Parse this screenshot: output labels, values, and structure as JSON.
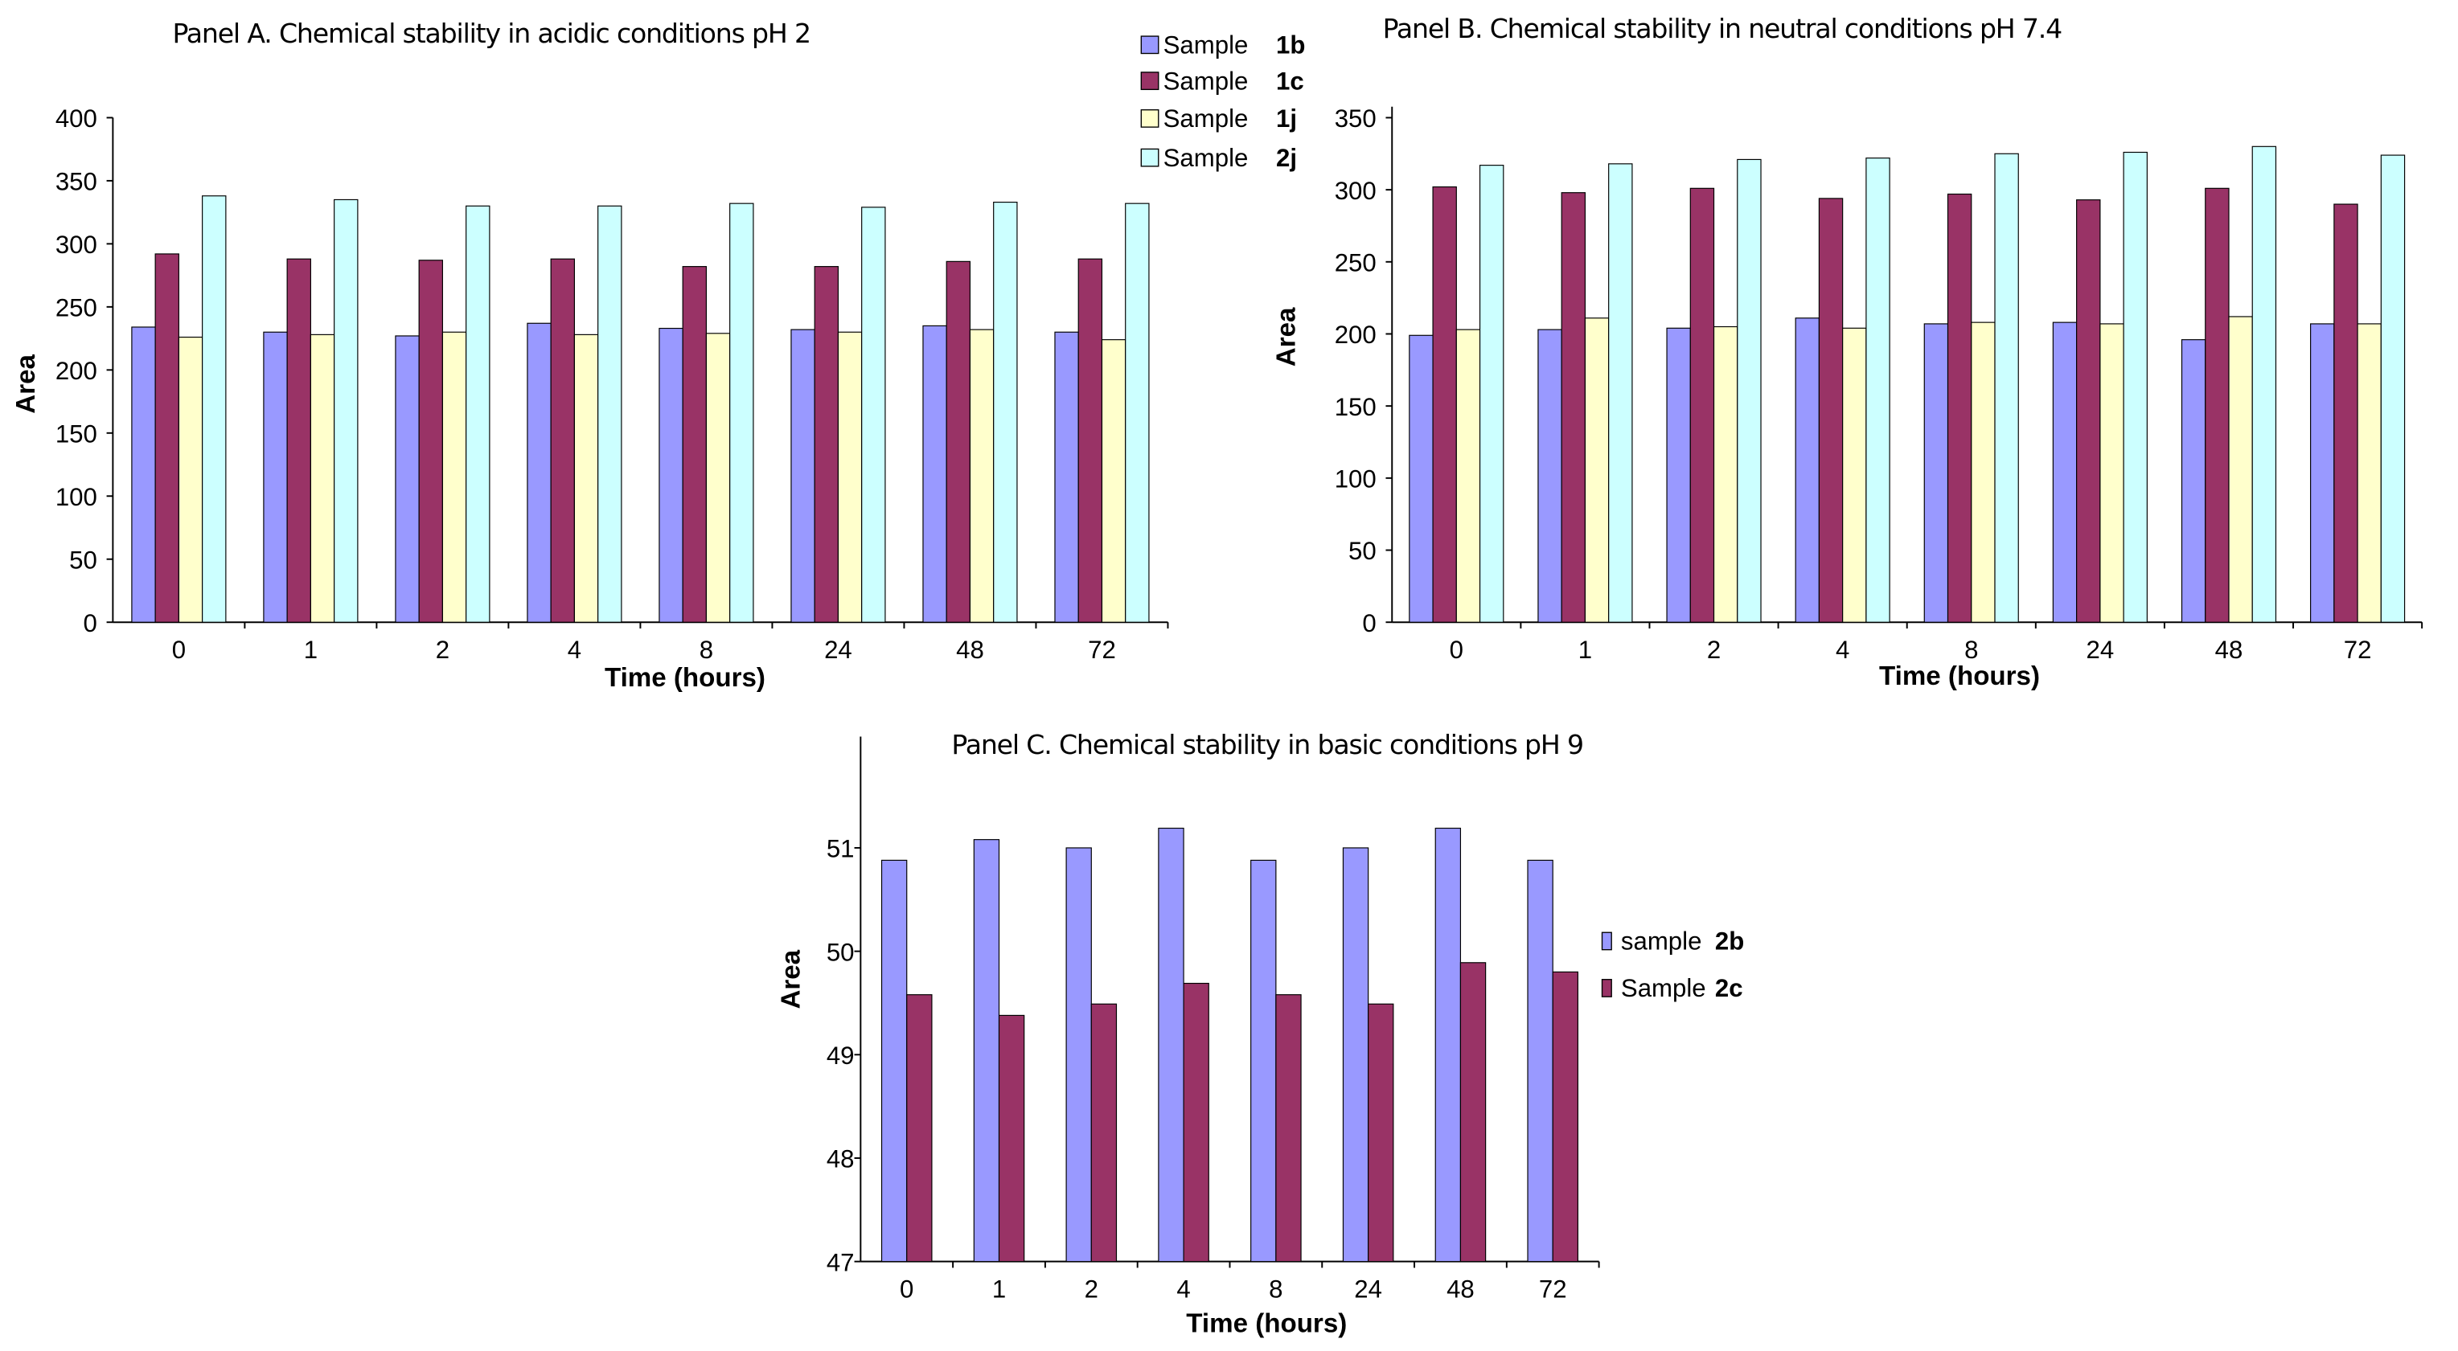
{
  "chart_data": [
    {
      "type": "bar",
      "title": "Panel A.   Chemical stability  in acidic conditions  pH 2",
      "xlabel": "Time (hours)",
      "ylabel": "Area",
      "ylim": [
        0,
        400
      ],
      "yticks": [
        "0",
        "50",
        "100",
        "150",
        "200",
        "250",
        "300",
        "350",
        "400"
      ],
      "categories": [
        "0",
        "1",
        "2",
        "4",
        "8",
        "24",
        "48",
        "72"
      ],
      "legend_position": "top-right",
      "series": [
        {
          "name": "Sample",
          "id": "1b",
          "color": "#9999ff",
          "values": [
            234,
            230,
            227,
            237,
            233,
            232,
            235,
            230
          ]
        },
        {
          "name": "Sample",
          "id": "1c",
          "color": "#993366",
          "values": [
            292,
            288,
            287,
            288,
            282,
            282,
            286,
            288
          ]
        },
        {
          "name": "Sample",
          "id": "1j",
          "color": "#ffffcc",
          "values": [
            226,
            228,
            230,
            228,
            229,
            230,
            232,
            224
          ]
        },
        {
          "name": "Sample",
          "id": "2j",
          "color": "#ccffff",
          "values": [
            338,
            335,
            330,
            330,
            332,
            329,
            333,
            332
          ]
        }
      ]
    },
    {
      "type": "bar",
      "title": "Panel B. Chemical stability in neutral conditions  pH 7.4",
      "xlabel": "Time  (hours)",
      "ylabel": "Area",
      "ylim": [
        0,
        350
      ],
      "yticks": [
        "0",
        "50",
        "100",
        "150",
        "200",
        "250",
        "300",
        "350"
      ],
      "categories": [
        "0",
        "1",
        "2",
        "4",
        "8",
        "24",
        "48",
        "72"
      ],
      "series": [
        {
          "name": "Sample",
          "id": "1b",
          "color": "#9999ff",
          "values": [
            199,
            203,
            204,
            211,
            207,
            208,
            196,
            207
          ]
        },
        {
          "name": "Sample",
          "id": "1c",
          "color": "#993366",
          "values": [
            302,
            298,
            301,
            294,
            297,
            293,
            301,
            290
          ]
        },
        {
          "name": "Sample",
          "id": "1j",
          "color": "#ffffcc",
          "values": [
            203,
            211,
            205,
            204,
            208,
            207,
            212,
            207
          ]
        },
        {
          "name": "Sample",
          "id": "2j",
          "color": "#ccffff",
          "values": [
            317,
            318,
            321,
            322,
            325,
            326,
            330,
            324
          ]
        }
      ]
    },
    {
      "type": "bar",
      "title": "Panel C. Chemical stability in basic conditions pH 9",
      "xlabel": "Time (hours)",
      "ylabel": "Area",
      "ylim": [
        47,
        52
      ],
      "yticks": [
        "47",
        "48",
        "49",
        "50",
        "51"
      ],
      "categories": [
        "0",
        "1",
        "2",
        "4",
        "8",
        "24",
        "48",
        "72"
      ],
      "legend_position": "right",
      "series": [
        {
          "name": "sample",
          "id": "2b",
          "color": "#9999ff",
          "values": [
            50.88,
            51.08,
            51.0,
            51.19,
            50.88,
            51.0,
            51.19,
            50.88
          ]
        },
        {
          "name": "Sample",
          "id": "2c",
          "color": "#993366",
          "values": [
            49.58,
            49.38,
            49.49,
            49.69,
            49.58,
            49.49,
            49.89,
            49.8
          ]
        }
      ]
    }
  ]
}
